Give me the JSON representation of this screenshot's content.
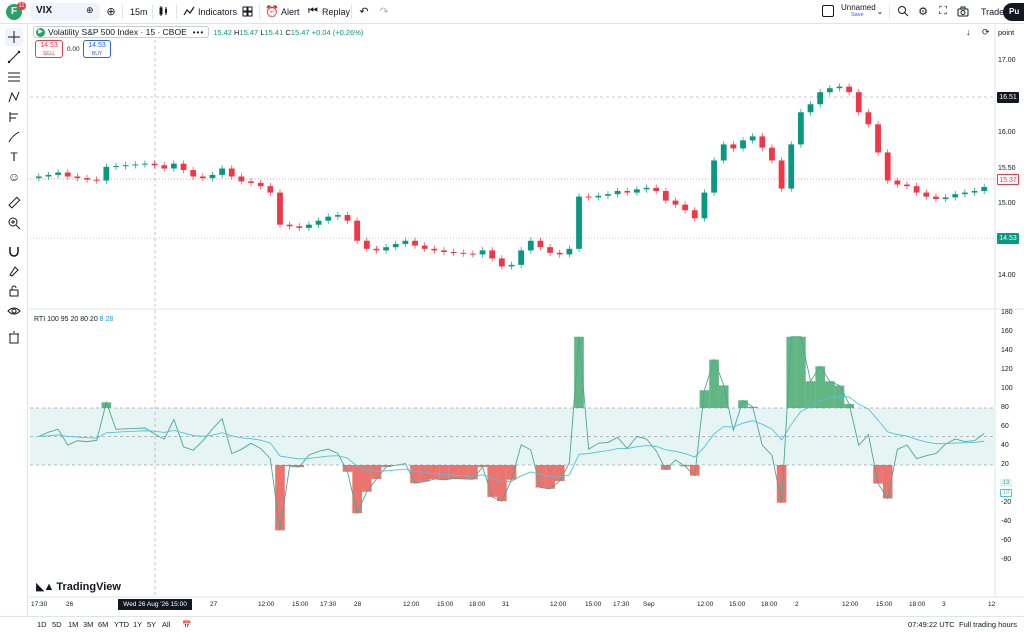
{
  "topbar": {
    "avatar_letter": "F",
    "avatar_badge": "11",
    "symbol": "VIX",
    "interval": "15m",
    "indicators_label": "Indicators",
    "alert_label": "Alert",
    "replay_label": "Replay",
    "layout_name": "Unnamed",
    "layout_status": "Save",
    "trade_label": "Trade",
    "publish_label": "Pu"
  },
  "legend": {
    "title": "Volatility S&P 500 Index · 15 · CBOE",
    "dots": "•••",
    "open_label": "",
    "open": "15.42",
    "high_label": "H",
    "high": "15.47",
    "low_label": "L",
    "low": "15.41",
    "close_label": "C",
    "close": "15.47",
    "change": "+0.04 (+0.26%)"
  },
  "trade": {
    "sell_price": "14.53",
    "sell_label": "SELL",
    "spread": "0.00",
    "buy_price": "14.53",
    "buy_label": "BUY"
  },
  "indicator": {
    "name": "RTI",
    "params": "100 95 20 80 20",
    "value_a": "8",
    "value_b": "28"
  },
  "price_axis": {
    "labels": [
      "17.00",
      "16.00",
      "15.50",
      "15.00",
      "14.00"
    ],
    "tag_high": "16.51",
    "tag_current": "15.37",
    "tag_low": "14.53",
    "point_label": "point"
  },
  "rti_axis": {
    "labels": [
      "180",
      "160",
      "140",
      "120",
      "100",
      "80",
      "60",
      "40",
      "20",
      "0",
      "-20",
      "-40",
      "-60",
      "-80"
    ],
    "tag_a": "13",
    "tag_b": "10"
  },
  "time_axis": {
    "labels": [
      "17:30",
      "26",
      "27",
      "12:00",
      "15:00",
      "17:30",
      "28",
      "12:00",
      "15:00",
      "18:00",
      "31",
      "12:00",
      "15:00",
      "17:30",
      "Sep",
      "12:00",
      "15:00",
      "18:00",
      "2",
      "12:00",
      "15:00",
      "18:00",
      "3",
      "12"
    ],
    "crosshair": "Wed 26 Aug '26   15:00"
  },
  "bottombar": {
    "ranges": [
      "1D",
      "5D",
      "1M",
      "3M",
      "6M",
      "YTD",
      "1Y",
      "5Y",
      "All"
    ],
    "clock": "07:49:22 UTC",
    "session": "Full trading hours"
  },
  "brand": "TradingView",
  "colors": {
    "up": "#089981",
    "down": "#f23645",
    "rti_line": "#4aa892",
    "rti_signal": "#4fc3d9",
    "band_fill": "#e0f2f1",
    "tag_high_bg": "#131722",
    "tag_current_bg": "#ffffff",
    "tag_low_bg": "#089981"
  },
  "chart_data": {
    "type": "candlestick",
    "symbol": "VIX",
    "interval": "15",
    "ylim": [
      13.9,
      17.2
    ],
    "series": [
      {
        "name": "VIX",
        "values": [
          15.5,
          15.52,
          15.55,
          15.5,
          15.48,
          15.46,
          15.45,
          15.62,
          15.63,
          15.64,
          15.65,
          15.66,
          15.64,
          15.6,
          15.66,
          15.58,
          15.5,
          15.48,
          15.52,
          15.6,
          15.5,
          15.44,
          15.42,
          15.38,
          15.3,
          14.9,
          14.88,
          14.86,
          14.9,
          14.95,
          15.0,
          15.02,
          14.95,
          14.7,
          14.6,
          14.58,
          14.62,
          14.66,
          14.7,
          14.64,
          14.6,
          14.58,
          14.56,
          14.55,
          14.54,
          14.53,
          14.58,
          14.48,
          14.38,
          14.4,
          14.58,
          14.7,
          14.62,
          14.55,
          14.53,
          14.6,
          15.25,
          15.24,
          15.26,
          15.28,
          15.32,
          15.3,
          15.34,
          15.36,
          15.32,
          15.2,
          15.15,
          15.08,
          14.98,
          15.3,
          15.7,
          15.9,
          15.85,
          15.95,
          16.0,
          15.86,
          15.7,
          15.35,
          15.9,
          16.3,
          16.4,
          16.55,
          16.6,
          16.62,
          16.55,
          16.3,
          16.15,
          15.8,
          15.45,
          15.4,
          15.38,
          15.3,
          15.25,
          15.22,
          15.24,
          15.28,
          15.3,
          15.32,
          15.37
        ]
      }
    ]
  }
}
